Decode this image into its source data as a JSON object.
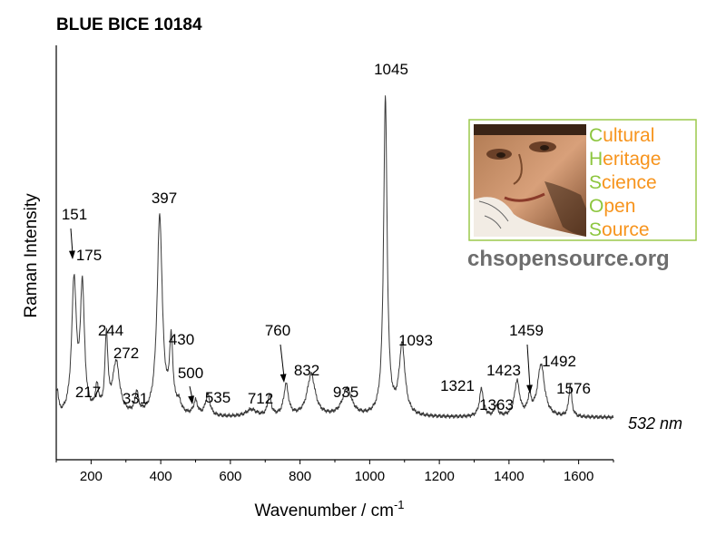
{
  "chart_data": {
    "type": "line",
    "title": "BLUE BICE 10184",
    "xlabel": "Wavenumber / cm",
    "xlabel_superscript": "-1",
    "ylabel": "Raman Intensity",
    "xlim": [
      100,
      1700
    ],
    "ylim": [
      0,
      100
    ],
    "x_ticks": [
      "200",
      "400",
      "600",
      "800",
      "1000",
      "1200",
      "1400",
      "1600"
    ],
    "y_ticks": [],
    "grid": false,
    "annotation": "532 nm",
    "peaks": [
      {
        "label": "151",
        "x": 151,
        "arrow": true
      },
      {
        "label": "175",
        "x": 175
      },
      {
        "label": "217",
        "x": 217
      },
      {
        "label": "244",
        "x": 244
      },
      {
        "label": "272",
        "x": 272
      },
      {
        "label": "331",
        "x": 331
      },
      {
        "label": "397",
        "x": 397
      },
      {
        "label": "430",
        "x": 430
      },
      {
        "label": "500",
        "x": 500,
        "arrow": true
      },
      {
        "label": "535",
        "x": 535
      },
      {
        "label": "712",
        "x": 712
      },
      {
        "label": "760",
        "x": 760,
        "arrow": true
      },
      {
        "label": "832",
        "x": 832
      },
      {
        "label": "935",
        "x": 935
      },
      {
        "label": "1045",
        "x": 1045
      },
      {
        "label": "1093",
        "x": 1093
      },
      {
        "label": "1321",
        "x": 1321
      },
      {
        "label": "1363",
        "x": 1363
      },
      {
        "label": "1423",
        "x": 1423
      },
      {
        "label": "1459",
        "x": 1459,
        "arrow": true
      },
      {
        "label": "1492",
        "x": 1492
      },
      {
        "label": "1576",
        "x": 1576
      }
    ],
    "spectrum": {
      "baseline": 4,
      "bands": [
        [
          103,
          7,
          4
        ],
        [
          151,
          38,
          8
        ],
        [
          175,
          36,
          7
        ],
        [
          217,
          7,
          6
        ],
        [
          244,
          22,
          5
        ],
        [
          272,
          15,
          12
        ],
        [
          331,
          6,
          6
        ],
        [
          397,
          57,
          9
        ],
        [
          430,
          20,
          6
        ],
        [
          452,
          3,
          8
        ],
        [
          500,
          4,
          7
        ],
        [
          535,
          6,
          8
        ],
        [
          660,
          2,
          18
        ],
        [
          712,
          6,
          6
        ],
        [
          760,
          9,
          8
        ],
        [
          832,
          12,
          14
        ],
        [
          935,
          8,
          16
        ],
        [
          1045,
          91,
          6
        ],
        [
          1093,
          20,
          10
        ],
        [
          1321,
          8,
          7
        ],
        [
          1363,
          3,
          6
        ],
        [
          1423,
          10,
          9
        ],
        [
          1459,
          5,
          6
        ],
        [
          1492,
          15,
          12
        ],
        [
          1576,
          9,
          5
        ]
      ]
    }
  },
  "logo": {
    "lines": [
      {
        "first": "C",
        "rest": "ultural"
      },
      {
        "first": "H",
        "rest": "eritage"
      },
      {
        "first": "S",
        "rest": "cience"
      },
      {
        "first": "O",
        "rest": "pen"
      },
      {
        "first": "S",
        "rest": "ource"
      }
    ],
    "first_color": "#8dc63f",
    "rest_color": "#f7941d",
    "border_color": "#9bc94b",
    "url": "chsopensource.org"
  }
}
